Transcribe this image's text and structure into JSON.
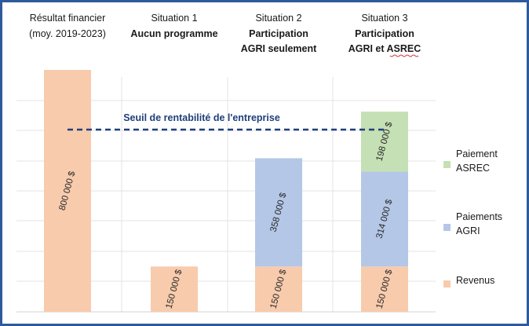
{
  "chart_data": {
    "type": "bar",
    "stacked": true,
    "categories": [
      {
        "title": "Résultat financier",
        "subtitle": "(moy. 2019-2023)",
        "subtitle_bold": false
      },
      {
        "title": "Situation 1",
        "subtitle": "Aucun programme",
        "subtitle_bold": true
      },
      {
        "title": "Situation 2",
        "subtitle": "Participation AGRI seulement",
        "subtitle_lines": [
          "Participation",
          "AGRI seulement"
        ],
        "subtitle_bold": true
      },
      {
        "title": "Situation 3",
        "subtitle": "Participation AGRI et ASREC",
        "subtitle_lines": [
          "Participation",
          "AGRI et ASREC"
        ],
        "subtitle_bold": true
      }
    ],
    "series": [
      {
        "name": "Revenus",
        "color": "#f8cbad",
        "values": [
          800000,
          150000,
          150000,
          150000
        ],
        "labels": [
          "800 000 $",
          "150 000 $",
          "150 000 $",
          "150 000 $"
        ]
      },
      {
        "name": "Paiements AGRI",
        "legend_lines": [
          "Paiements",
          "AGRI"
        ],
        "color": "#b4c7e7",
        "values": [
          0,
          0,
          358000,
          314000
        ],
        "labels": [
          "",
          "",
          "358 000 $",
          "314 000 $"
        ]
      },
      {
        "name": "Paiement ASREC",
        "legend_lines": [
          "Paiement",
          "ASREC"
        ],
        "color": "#c5e0b4",
        "values": [
          0,
          0,
          0,
          198000
        ],
        "labels": [
          "",
          "",
          "",
          "198 000 $"
        ]
      }
    ],
    "threshold": {
      "label": "Seuil de rentabilité de l'entreprise",
      "color": "#1f3f7a"
    },
    "ylim": [
      0,
      800000
    ],
    "grid": true,
    "legend_position": "right",
    "label_rotation": -75
  }
}
